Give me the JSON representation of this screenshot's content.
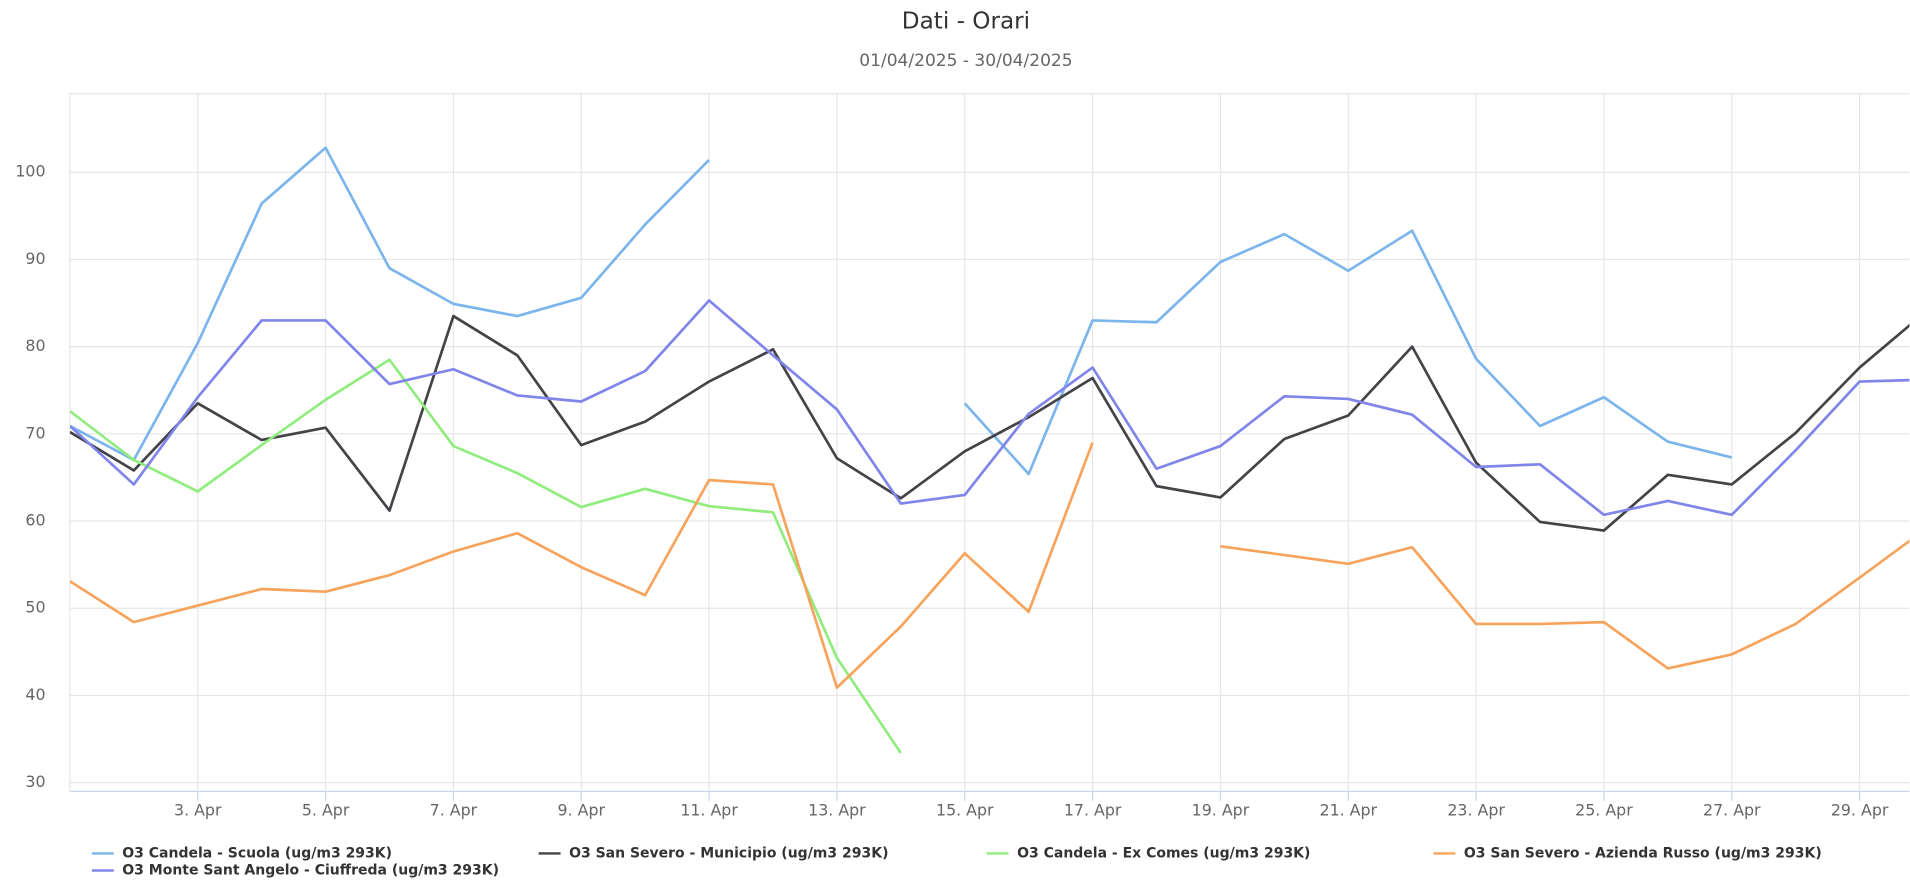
{
  "chart_data": {
    "type": "line",
    "title": "Dati - Orari",
    "subtitle": "01/04/2025 - 30/04/2025",
    "x": [
      1,
      2,
      3,
      4,
      5,
      6,
      7,
      8,
      9,
      10,
      11,
      12,
      13,
      14,
      15,
      16,
      17,
      18,
      19,
      20,
      21,
      22,
      23,
      24,
      25,
      26,
      27,
      28,
      29,
      30
    ],
    "xlim": [
      1,
      29.78
    ],
    "xticks": [
      {
        "value": 3,
        "label": "3. Apr"
      },
      {
        "value": 5,
        "label": "5. Apr"
      },
      {
        "value": 7,
        "label": "7. Apr"
      },
      {
        "value": 9,
        "label": "9. Apr"
      },
      {
        "value": 11,
        "label": "11. Apr"
      },
      {
        "value": 13,
        "label": "13. Apr"
      },
      {
        "value": 15,
        "label": "15. Apr"
      },
      {
        "value": 17,
        "label": "17. Apr"
      },
      {
        "value": 19,
        "label": "19. Apr"
      },
      {
        "value": 21,
        "label": "21. Apr"
      },
      {
        "value": 23,
        "label": "23. Apr"
      },
      {
        "value": 25,
        "label": "25. Apr"
      },
      {
        "value": 27,
        "label": "27. Apr"
      },
      {
        "value": 29,
        "label": "29. Apr"
      }
    ],
    "ylim": [
      29,
      109
    ],
    "yticks": [
      30,
      40,
      50,
      60,
      70,
      80,
      90,
      100
    ],
    "grid": true,
    "legend": "bottom",
    "series": [
      {
        "name": "O3 Candela - Scuola (ug/m3 293K)",
        "color": "#7cb5ec",
        "values": [
          70.9,
          67.0,
          80.4,
          96.4,
          102.8,
          89.0,
          84.9,
          83.5,
          85.6,
          94.0,
          101.4,
          null,
          null,
          null,
          73.5,
          65.4,
          83.0,
          82.8,
          89.7,
          92.9,
          88.7,
          93.3,
          78.6,
          70.9,
          74.2,
          69.1,
          67.3,
          null,
          null,
          null
        ]
      },
      {
        "name": "O3 San Severo - Municipio (ug/m3 293K)",
        "color": "#434348",
        "values": [
          70.2,
          65.8,
          73.5,
          69.3,
          70.7,
          61.2,
          83.5,
          79.0,
          68.7,
          71.4,
          76.0,
          79.7,
          67.2,
          62.6,
          68.0,
          71.9,
          76.4,
          64.0,
          62.7,
          69.4,
          72.1,
          80.0,
          66.7,
          59.9,
          58.9,
          65.3,
          64.2,
          70.1,
          77.6,
          83.8
        ]
      },
      {
        "name": "O3 Candela - Ex Comes (ug/m3 293K)",
        "color": "#90ed7d",
        "values": [
          72.6,
          67.0,
          63.4,
          68.7,
          73.9,
          78.5,
          68.6,
          65.5,
          61.6,
          63.7,
          61.7,
          61.0,
          44.3,
          33.4,
          null,
          null,
          null,
          null,
          null,
          null,
          null,
          null,
          null,
          null,
          null,
          null,
          null,
          null,
          null,
          null
        ]
      },
      {
        "name": "O3 San Severo - Azienda Russo (ug/m3 293K)",
        "color": "#f7a35c",
        "values": [
          53.1,
          48.4,
          50.3,
          52.2,
          51.9,
          53.8,
          56.5,
          58.6,
          54.7,
          51.5,
          64.7,
          64.2,
          40.9,
          47.9,
          56.3,
          49.6,
          69.0,
          null,
          57.1,
          56.1,
          55.1,
          57.0,
          48.2,
          48.2,
          48.4,
          43.1,
          44.7,
          48.2,
          53.5,
          58.9
        ]
      },
      {
        "name": "O3 Monte Sant Angelo - Ciuffreda (ug/m3 293K)",
        "color": "#8085e9",
        "values": [
          70.9,
          64.2,
          74.2,
          83.0,
          83.0,
          75.7,
          77.4,
          74.4,
          73.7,
          77.2,
          85.3,
          79.0,
          72.8,
          62.0,
          63.0,
          72.3,
          77.6,
          66.0,
          68.6,
          74.3,
          74.0,
          72.2,
          66.2,
          66.5,
          60.7,
          62.3,
          60.7,
          68.1,
          76.0,
          76.2
        ]
      }
    ]
  }
}
